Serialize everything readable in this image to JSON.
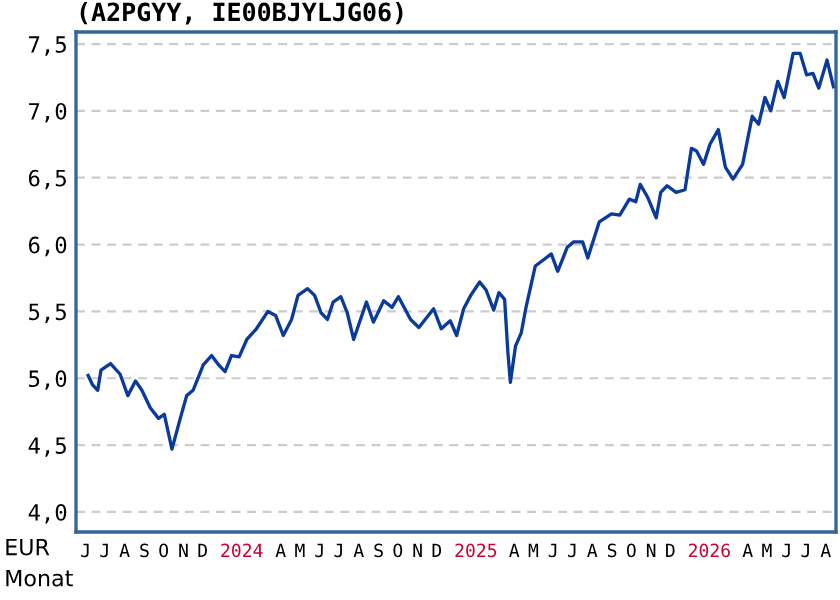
{
  "chart_data": {
    "type": "line",
    "title": "(A2PGYY, IE00BJYLJG06)",
    "xlabel": "Monat",
    "ylabel": "EUR",
    "x": [
      "2023-06-20",
      "2023-06-27",
      "2023-07-05",
      "2023-07-10",
      "2023-07-25",
      "2023-08-09",
      "2023-08-21",
      "2023-09-02",
      "2023-09-12",
      "2023-09-25",
      "2023-10-08",
      "2023-10-17",
      "2023-10-29",
      "2023-11-11",
      "2023-11-21",
      "2023-12-01",
      "2023-12-17",
      "2023-12-30",
      "2024-01-10",
      "2024-01-20",
      "2024-01-30",
      "2024-02-11",
      "2024-02-23",
      "2024-03-09",
      "2024-03-27",
      "2024-04-08",
      "2024-04-20",
      "2024-05-03",
      "2024-05-13",
      "2024-05-28",
      "2024-06-08",
      "2024-06-18",
      "2024-06-28",
      "2024-07-07",
      "2024-07-19",
      "2024-07-29",
      "2024-08-08",
      "2024-08-28",
      "2024-09-08",
      "2024-09-24",
      "2024-10-07",
      "2024-10-17",
      "2024-11-05",
      "2024-11-18",
      "2024-12-11",
      "2024-12-23",
      "2025-01-06",
      "2025-01-16",
      "2025-01-27",
      "2025-02-07",
      "2025-02-21",
      "2025-03-03",
      "2025-03-15",
      "2025-03-23",
      "2025-04-01",
      "2025-04-06",
      "2025-04-10",
      "2025-04-18",
      "2025-04-27",
      "2025-05-04",
      "2025-05-19",
      "2025-06-13",
      "2025-06-23",
      "2025-07-08",
      "2025-07-18",
      "2025-08-01",
      "2025-08-09",
      "2025-08-27",
      "2025-09-15",
      "2025-09-28",
      "2025-10-13",
      "2025-10-23",
      "2025-10-30",
      "2025-11-11",
      "2025-11-24",
      "2025-12-01",
      "2025-12-11",
      "2025-12-25",
      "2026-01-08",
      "2026-01-18",
      "2026-01-26",
      "2026-02-06",
      "2026-02-16",
      "2026-03-01",
      "2026-03-12",
      "2026-03-24",
      "2026-04-08",
      "2026-04-23",
      "2026-05-03",
      "2026-05-13",
      "2026-05-22",
      "2026-06-02",
      "2026-06-12",
      "2026-06-26",
      "2026-07-07",
      "2026-07-17",
      "2026-07-27",
      "2026-08-05",
      "2026-08-18",
      "2026-08-28"
    ],
    "series": [
      {
        "color": "#0a3a9c",
        "values": [
          5.02,
          4.95,
          4.91,
          5.06,
          5.11,
          5.03,
          4.87,
          4.98,
          4.91,
          4.78,
          4.7,
          4.73,
          4.47,
          4.7,
          4.87,
          4.91,
          5.1,
          5.17,
          5.1,
          5.05,
          5.17,
          5.16,
          5.29,
          5.37,
          5.5,
          5.47,
          5.32,
          5.44,
          5.62,
          5.67,
          5.62,
          5.49,
          5.44,
          5.57,
          5.61,
          5.49,
          5.29,
          5.57,
          5.42,
          5.58,
          5.53,
          5.61,
          5.44,
          5.38,
          5.52,
          5.37,
          5.43,
          5.32,
          5.52,
          5.62,
          5.72,
          5.66,
          5.51,
          5.64,
          5.59,
          5.2,
          4.97,
          5.24,
          5.34,
          5.52,
          5.84,
          5.93,
          5.8,
          5.98,
          6.02,
          6.02,
          5.9,
          6.17,
          6.23,
          6.22,
          6.34,
          6.32,
          6.45,
          6.35,
          6.2,
          6.39,
          6.44,
          6.39,
          6.41,
          6.72,
          6.7,
          6.6,
          6.75,
          6.86,
          6.58,
          6.49,
          6.6,
          6.96,
          6.9,
          7.1,
          7.0,
          7.22,
          7.1,
          7.43,
          7.43,
          7.27,
          7.28,
          7.17,
          7.38,
          7.18
        ]
      }
    ],
    "xlim": [
      "2023-06-01",
      "2026-09-01"
    ],
    "xticks": [
      {
        "value": "2023-06-16",
        "label": "J"
      },
      {
        "value": "2023-07-16",
        "label": "J"
      },
      {
        "value": "2023-08-16",
        "label": "A"
      },
      {
        "value": "2023-09-16",
        "label": "S"
      },
      {
        "value": "2023-10-16",
        "label": "O"
      },
      {
        "value": "2023-11-16",
        "label": "N"
      },
      {
        "value": "2023-12-16",
        "label": "D"
      },
      {
        "value": "2024-02-15",
        "label": "2024"
      },
      {
        "value": "2024-04-16",
        "label": "A"
      },
      {
        "value": "2024-05-16",
        "label": "M"
      },
      {
        "value": "2024-06-16",
        "label": "J"
      },
      {
        "value": "2024-07-16",
        "label": "J"
      },
      {
        "value": "2024-08-16",
        "label": "A"
      },
      {
        "value": "2024-09-16",
        "label": "S"
      },
      {
        "value": "2024-10-16",
        "label": "O"
      },
      {
        "value": "2024-11-16",
        "label": "N"
      },
      {
        "value": "2024-12-16",
        "label": "D"
      },
      {
        "value": "2025-02-15",
        "label": "2025"
      },
      {
        "value": "2025-04-16",
        "label": "A"
      },
      {
        "value": "2025-05-16",
        "label": "M"
      },
      {
        "value": "2025-06-16",
        "label": "J"
      },
      {
        "value": "2025-07-16",
        "label": "J"
      },
      {
        "value": "2025-08-16",
        "label": "A"
      },
      {
        "value": "2025-09-16",
        "label": "S"
      },
      {
        "value": "2025-10-16",
        "label": "O"
      },
      {
        "value": "2025-11-16",
        "label": "N"
      },
      {
        "value": "2025-12-16",
        "label": "D"
      },
      {
        "value": "2026-02-15",
        "label": "2026"
      },
      {
        "value": "2026-04-16",
        "label": "A"
      },
      {
        "value": "2026-05-16",
        "label": "M"
      },
      {
        "value": "2026-06-16",
        "label": "J"
      },
      {
        "value": "2026-07-16",
        "label": "J"
      },
      {
        "value": "2026-08-16",
        "label": "A"
      }
    ],
    "ylim": [
      3.85,
      7.59
    ],
    "yticks": [
      {
        "value": 4.0,
        "label": "4,0"
      },
      {
        "value": 4.5,
        "label": "4,5"
      },
      {
        "value": 5.0,
        "label": "5,0"
      },
      {
        "value": 5.5,
        "label": "5,5"
      },
      {
        "value": 6.0,
        "label": "6,0"
      },
      {
        "value": 6.5,
        "label": "6,5"
      },
      {
        "value": 7.0,
        "label": "7,0"
      },
      {
        "value": 7.5,
        "label": "7,5"
      }
    ],
    "grid": "y",
    "line_style": "solid",
    "marker": "none"
  }
}
